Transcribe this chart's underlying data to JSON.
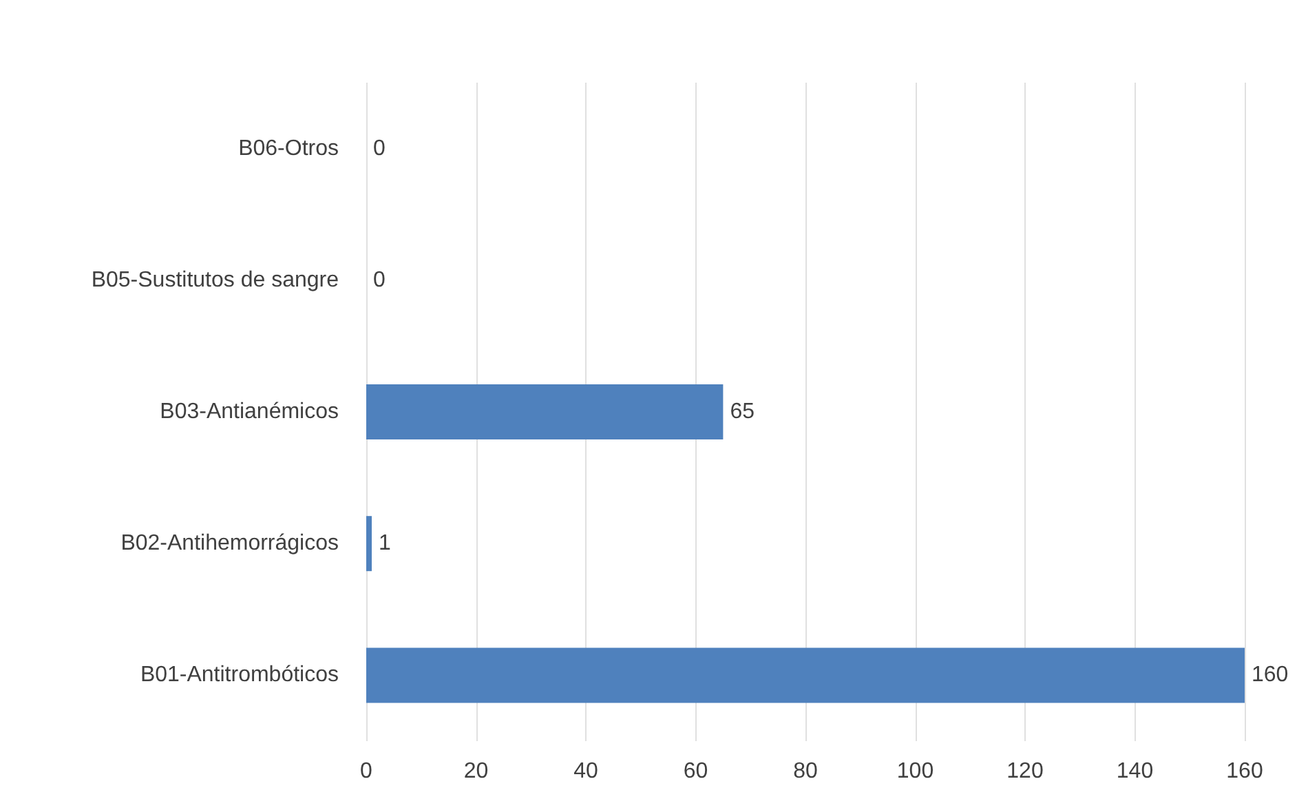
{
  "chart_data": {
    "type": "bar",
    "orientation": "horizontal",
    "categories": [
      "B06-Otros",
      "B05-Sustitutos de sangre",
      "B03-Antianémicos",
      "B02-Antihemorrágicos",
      "B01-Antitrombóticos"
    ],
    "values": [
      0,
      0,
      65,
      1,
      160
    ],
    "color": "#4f81bd",
    "xlim": [
      0,
      160
    ],
    "xticks": [
      0,
      20,
      40,
      60,
      80,
      100,
      120,
      140,
      160
    ],
    "grid": "x",
    "data_labels": true
  }
}
